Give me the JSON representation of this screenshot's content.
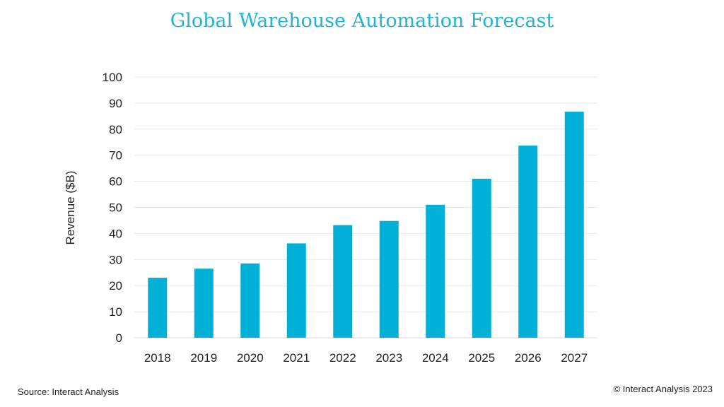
{
  "colors": {
    "title": "#22b3d0",
    "bar": "#00b0d6",
    "grid": "#e8e8e8",
    "text": "#222222"
  },
  "footer": {
    "source": "Source: Interact Analysis",
    "copyright": "© Interact Analysis 2023"
  },
  "chart_data": {
    "type": "bar",
    "title": "Global Warehouse Automation Forecast",
    "xlabel": "",
    "ylabel": "Revenue ($B)",
    "ylim": [
      0,
      100
    ],
    "yticks": [
      0,
      10,
      20,
      30,
      40,
      50,
      60,
      70,
      80,
      90,
      100
    ],
    "grid": true,
    "categories": [
      "2018",
      "2019",
      "2020",
      "2021",
      "2022",
      "2023",
      "2024",
      "2025",
      "2026",
      "2027"
    ],
    "values": [
      23,
      26.5,
      28.5,
      36.2,
      43.2,
      44.8,
      51,
      61,
      73.7,
      86.7
    ]
  }
}
